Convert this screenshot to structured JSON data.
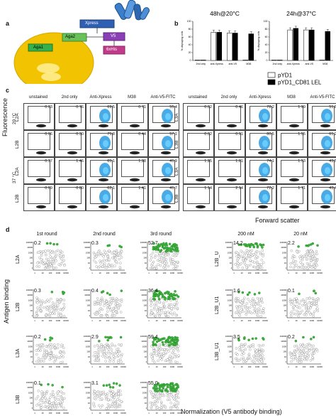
{
  "panel_a": {
    "letter": "a",
    "labels": [
      "Xpress",
      "Aga2",
      "V5",
      "Aga1",
      "6xHis"
    ]
  },
  "panel_b": {
    "letter": "b",
    "charts": [
      {
        "title": "48h@20°C",
        "ylabel": "% displaying cells",
        "categories": [
          "2nd only",
          "anti-Xpress",
          "anti-V5",
          "M38"
        ],
        "series": [
          {
            "name": "pYD1",
            "values": [
              1,
              72,
              70,
              1
            ]
          },
          {
            "name": "pYD1_CD81 LEL",
            "values": [
              1,
              72,
              70,
              68
            ]
          }
        ]
      },
      {
        "title": "24h@37°C",
        "ylabel": "% displaying cells",
        "categories": [
          "2nd only",
          "anti-Xpress",
          "anti-V5",
          "M38"
        ],
        "series": [
          {
            "name": "pYD1",
            "values": [
              1,
              78,
              78,
              1
            ]
          },
          {
            "name": "pYD1_CD81 LEL",
            "values": [
              1,
              82,
              78,
              74
            ]
          }
        ]
      }
    ],
    "legend": [
      "pYD1",
      "pYD1_CD81 LEL"
    ]
  },
  "panel_c": {
    "letter": "c",
    "ylabel": "Fluorescence",
    "xlabel": "Forward scatter",
    "columns": [
      "unstained",
      "2nd only",
      "Anti-Xpress",
      "M38",
      "Anti-V5-FITC"
    ],
    "temps": [
      "20 °C",
      "37 °C"
    ],
    "left": {
      "rows": [
        "L2A",
        "L2B",
        "L2A",
        "L2B"
      ],
      "values": [
        [
          "0.03",
          "0.76",
          "69.5",
          "0.71",
          "55.4"
        ],
        [
          "0.06",
          "0.30",
          "75.8",
          "0.44",
          "57.1"
        ],
        [
          "0.37",
          "1.46",
          "65.1",
          "1.28",
          "41.9"
        ],
        [
          "0.09",
          "0.80",
          "62.1",
          "1.41",
          "41.7"
        ]
      ]
    },
    "right": {
      "rows": [
        "L3A",
        "L3B",
        "L3A",
        "L3B"
      ],
      "values": [
        [
          "0.02",
          "0.46",
          "78.2",
          "1.99",
          "51.8"
        ],
        [
          "0.02",
          "0.91",
          "80.5",
          "1.55",
          "61.2"
        ],
        [
          "1.25",
          "1.81",
          "74.1",
          "1.53",
          "43.5"
        ],
        [
          "1.14",
          "2.14",
          "72.2",
          "1.71",
          "43.4"
        ]
      ]
    }
  },
  "panel_d": {
    "letter": "d",
    "ylabel": "Antigen binding",
    "xlabel": "Normalization (V5 antibody binding)",
    "columns": [
      "1st round",
      "2nd round",
      "3rd round",
      "200 nM",
      "20 nM"
    ],
    "left_rows": [
      "L2A",
      "L2B",
      "L3A",
      "L3B"
    ],
    "right_rows": [
      "L2B_U",
      "L2B_U1",
      "L3B_U1"
    ],
    "left_values": [
      [
        "0.2",
        "0.3",
        "52.7"
      ],
      [
        "0.3",
        "0.4",
        "36.4"
      ],
      [
        "0.2",
        "2.9",
        "59.4"
      ],
      [
        "0.1",
        "3.1",
        "55.0"
      ]
    ],
    "right_values": [
      [
        "14.2",
        "2.2"
      ],
      [
        "1.6",
        "0.1"
      ],
      [
        "3.5",
        "0.2"
      ]
    ],
    "yticks": [
      "100000",
      "10000",
      "1000",
      "100",
      "10",
      "1"
    ],
    "xticks": [
      "1",
      "10",
      "100",
      "1000",
      "10000"
    ]
  },
  "colors": {
    "gate_blue": "#2a9be0",
    "green": "#3cb33c",
    "yeast": "#f2c300",
    "xpress": "#2f5fb3",
    "v5": "#8a3fb4",
    "his": "#c23a8a",
    "aga1": "#35b04a"
  }
}
